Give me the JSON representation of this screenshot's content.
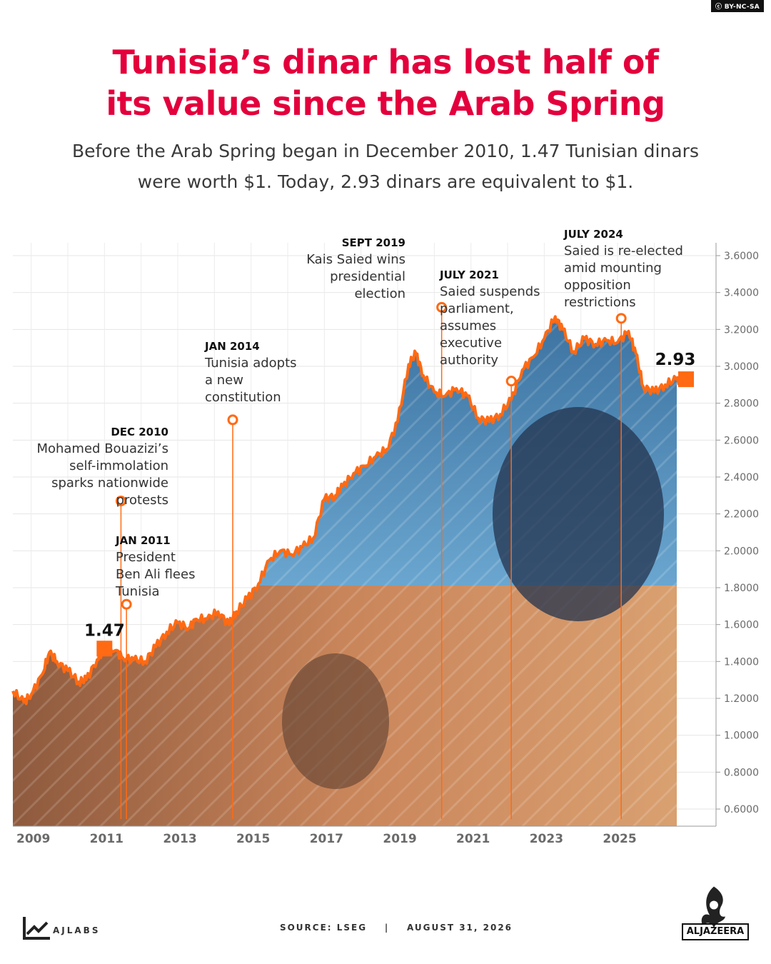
{
  "license": "BY-NC-SA",
  "title_line1": "Tunisia’s dinar has lost half of",
  "title_line2": "its value since the Arab Spring",
  "subtitle_line1": "Before the Arab Spring began in December 2010, 1.47 Tunisian dinars",
  "subtitle_line2": "were worth $1. Today, 2.93 dinars are equivalent to $1.",
  "footer": {
    "source": "SOURCE: LSEG",
    "separator": "|",
    "date": "AUGUST 31, 2026",
    "ajlabs": "AJLABS",
    "aljazeera": "ALJAZEERA"
  },
  "colors": {
    "title": "#e3003c",
    "line": "#ff6a13",
    "marker": "#ff6a13"
  },
  "chart_data": {
    "type": "area",
    "ylim": [
      0.6,
      3.6
    ],
    "xlim": [
      2008.0,
      2026.7
    ],
    "yticks": [
      "0.6000",
      "0.8000",
      "1.0000",
      "1.2000",
      "1.4000",
      "1.6000",
      "1.8000",
      "2.0000",
      "2.2000",
      "2.4000",
      "2.6000",
      "2.8000",
      "3.0000",
      "3.2000",
      "3.4000",
      "3.6000"
    ],
    "xticks": [
      "2009",
      "2011",
      "2013",
      "2015",
      "2017",
      "2019",
      "2021",
      "2023",
      "2025"
    ],
    "x": [
      2008.0,
      2008.3,
      2008.5,
      2008.8,
      2009.0,
      2009.2,
      2009.5,
      2009.8,
      2010.0,
      2010.3,
      2010.5,
      2010.8,
      2011.0,
      2011.3,
      2011.6,
      2011.9,
      2012.2,
      2012.5,
      2012.8,
      2013.0,
      2013.3,
      2013.6,
      2013.9,
      2014.1,
      2014.4,
      2014.7,
      2015.0,
      2015.3,
      2015.6,
      2015.9,
      2016.2,
      2016.5,
      2016.8,
      2017.0,
      2017.3,
      2017.6,
      2017.9,
      2018.2,
      2018.5,
      2018.8,
      2019.0,
      2019.2,
      2019.5,
      2019.8,
      2020.1,
      2020.4,
      2020.7,
      2021.0,
      2021.3,
      2021.6,
      2021.9,
      2022.2,
      2022.5,
      2022.8,
      2023.0,
      2023.3,
      2023.6,
      2023.9,
      2024.2,
      2024.5,
      2024.8,
      2025.0,
      2025.2,
      2025.5,
      2025.8,
      2026.1,
      2026.3,
      2026.5
    ],
    "values": [
      1.24,
      1.18,
      1.22,
      1.33,
      1.45,
      1.4,
      1.35,
      1.29,
      1.3,
      1.41,
      1.47,
      1.46,
      1.42,
      1.41,
      1.4,
      1.48,
      1.56,
      1.61,
      1.58,
      1.63,
      1.63,
      1.67,
      1.6,
      1.67,
      1.74,
      1.82,
      1.95,
      2.0,
      1.98,
      2.02,
      2.07,
      2.28,
      2.3,
      2.35,
      2.42,
      2.46,
      2.51,
      2.55,
      2.7,
      3.01,
      3.07,
      2.95,
      2.86,
      2.84,
      2.88,
      2.84,
      2.72,
      2.7,
      2.74,
      2.82,
      2.98,
      3.05,
      3.15,
      3.27,
      3.2,
      3.08,
      3.15,
      3.12,
      3.14,
      3.13,
      3.19,
      3.07,
      2.89,
      2.86,
      2.9,
      2.93,
      2.92,
      2.93
    ],
    "start_label": "1.47",
    "end_label": "2.93",
    "annotations": [
      {
        "date": "DEC 2010",
        "lines": [
          "Mohamed Bouazizi’s",
          "self-immolation",
          "sparks nationwide",
          "protests"
        ],
        "x": 2010.95,
        "y": 2.27
      },
      {
        "date": "JAN 2011",
        "lines": [
          "President",
          "Ben Ali flees",
          "Tunisia"
        ],
        "x": 2011.1,
        "y": 1.71
      },
      {
        "date": "JAN 2014",
        "lines": [
          "Tunisia adopts",
          "a new",
          "constitution"
        ],
        "x": 2014.0,
        "y": 2.71
      },
      {
        "date": "SEPT 2019",
        "lines": [
          "Kais Saied wins",
          "presidential",
          "election"
        ],
        "x": 2019.7,
        "y": 3.32
      },
      {
        "date": "JULY 2021",
        "lines": [
          "Saied suspends",
          "parliament,",
          "assumes",
          "executive",
          "authority"
        ],
        "x": 2021.6,
        "y": 2.92
      },
      {
        "date": "JULY 2024",
        "lines": [
          "Saied is re-elected",
          "amid mounting",
          "opposition",
          "restrictions"
        ],
        "x": 2024.6,
        "y": 3.26
      }
    ]
  }
}
